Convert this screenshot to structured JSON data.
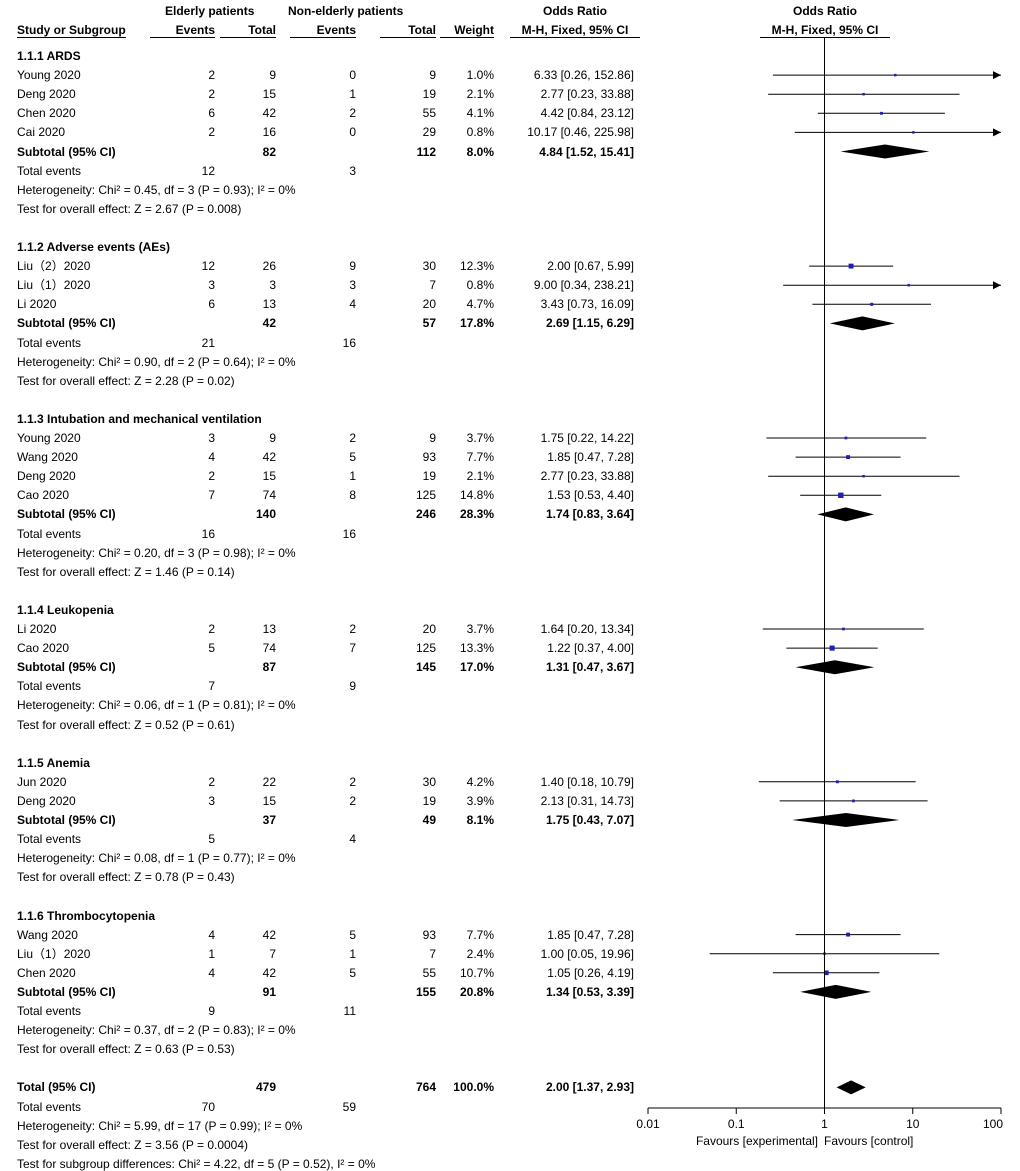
{
  "header": {
    "group1": "Elderly patients",
    "group2": "Non-elderly patients",
    "or_left": "Odds Ratio",
    "or_right": "Odds Ratio",
    "col_study": "Study or Subgroup",
    "col_events1": "Events",
    "col_total1": "Total",
    "col_events2": "Events",
    "col_total2": "Total",
    "col_weight": "Weight",
    "col_method_left": "M-H, Fixed, 95% CI",
    "col_method_right": "M-H, Fixed, 95% CI"
  },
  "chart_data": {
    "type": "forest",
    "xscale": "log",
    "xlim": [
      0.01,
      100
    ],
    "xticks": [
      "0.01",
      "0.1",
      "1",
      "10",
      "100"
    ],
    "favours_left": "Favours [experimental]",
    "favours_right": "Favours [control]",
    "subgroups": [
      {
        "title": "1.1.1 ARDS",
        "studies": [
          {
            "name": "Young 2020",
            "e1": "2",
            "t1": "9",
            "e2": "0",
            "t2": "9",
            "weight": "1.0%",
            "ci_text": "6.33 [0.26, 152.86]",
            "or": 6.33,
            "lo": 0.26,
            "hi": 152.86,
            "w": 1.0
          },
          {
            "name": "Deng 2020",
            "e1": "2",
            "t1": "15",
            "e2": "1",
            "t2": "19",
            "weight": "2.1%",
            "ci_text": "2.77 [0.23, 33.88]",
            "or": 2.77,
            "lo": 0.23,
            "hi": 33.88,
            "w": 2.1
          },
          {
            "name": "Chen 2020",
            "e1": "6",
            "t1": "42",
            "e2": "2",
            "t2": "55",
            "weight": "4.1%",
            "ci_text": "4.42 [0.84, 23.12]",
            "or": 4.42,
            "lo": 0.84,
            "hi": 23.12,
            "w": 4.1
          },
          {
            "name": "Cai 2020",
            "e1": "2",
            "t1": "16",
            "e2": "0",
            "t2": "29",
            "weight": "0.8%",
            "ci_text": "10.17 [0.46, 225.98]",
            "or": 10.17,
            "lo": 0.46,
            "hi": 225.98,
            "w": 0.8
          }
        ],
        "subtotal": {
          "label": "Subtotal (95% CI)",
          "t1": "82",
          "t2": "112",
          "weight": "8.0%",
          "ci_text": "4.84 [1.52, 15.41]",
          "or": 4.84,
          "lo": 1.52,
          "hi": 15.41
        },
        "total_events": {
          "label": "Total events",
          "e1": "12",
          "e2": "3"
        },
        "heterogeneity": "Heterogeneity: Chi² = 0.45, df = 3 (P = 0.93); I² = 0%",
        "overall": "Test for overall effect: Z = 2.67 (P = 0.008)"
      },
      {
        "title": "1.1.2 Adverse events (AEs)",
        "studies": [
          {
            "name": "Liu（2）2020",
            "e1": "12",
            "t1": "26",
            "e2": "9",
            "t2": "30",
            "weight": "12.3%",
            "ci_text": "2.00 [0.67, 5.99]",
            "or": 2.0,
            "lo": 0.67,
            "hi": 5.99,
            "w": 12.3
          },
          {
            "name": "Liu（1）2020",
            "e1": "3",
            "t1": "3",
            "e2": "3",
            "t2": "7",
            "weight": "0.8%",
            "ci_text": "9.00 [0.34, 238.21]",
            "or": 9.0,
            "lo": 0.34,
            "hi": 238.21,
            "w": 0.8
          },
          {
            "name": "Li 2020",
            "e1": "6",
            "t1": "13",
            "e2": "4",
            "t2": "20",
            "weight": "4.7%",
            "ci_text": "3.43 [0.73, 16.09]",
            "or": 3.43,
            "lo": 0.73,
            "hi": 16.09,
            "w": 4.7
          }
        ],
        "subtotal": {
          "label": "Subtotal (95% CI)",
          "t1": "42",
          "t2": "57",
          "weight": "17.8%",
          "ci_text": "2.69 [1.15, 6.29]",
          "or": 2.69,
          "lo": 1.15,
          "hi": 6.29
        },
        "total_events": {
          "label": "Total events",
          "e1": "21",
          "e2": "16"
        },
        "heterogeneity": "Heterogeneity: Chi² = 0.90, df = 2 (P = 0.64); I² = 0%",
        "overall": "Test for overall effect: Z = 2.28 (P = 0.02)"
      },
      {
        "title": "1.1.3 Intubation and mechanical ventilation",
        "studies": [
          {
            "name": "Young 2020",
            "e1": "3",
            "t1": "9",
            "e2": "2",
            "t2": "9",
            "weight": "3.7%",
            "ci_text": "1.75 [0.22, 14.22]",
            "or": 1.75,
            "lo": 0.22,
            "hi": 14.22,
            "w": 3.7
          },
          {
            "name": "Wang 2020",
            "e1": "4",
            "t1": "42",
            "e2": "5",
            "t2": "93",
            "weight": "7.7%",
            "ci_text": "1.85 [0.47, 7.28]",
            "or": 1.85,
            "lo": 0.47,
            "hi": 7.28,
            "w": 7.7
          },
          {
            "name": "Deng 2020",
            "e1": "2",
            "t1": "15",
            "e2": "1",
            "t2": "19",
            "weight": "2.1%",
            "ci_text": "2.77 [0.23, 33.88]",
            "or": 2.77,
            "lo": 0.23,
            "hi": 33.88,
            "w": 2.1
          },
          {
            "name": "Cao 2020",
            "e1": "7",
            "t1": "74",
            "e2": "8",
            "t2": "125",
            "weight": "14.8%",
            "ci_text": "1.53 [0.53, 4.40]",
            "or": 1.53,
            "lo": 0.53,
            "hi": 4.4,
            "w": 14.8
          }
        ],
        "subtotal": {
          "label": "Subtotal (95% CI)",
          "t1": "140",
          "t2": "246",
          "weight": "28.3%",
          "ci_text": "1.74 [0.83, 3.64]",
          "or": 1.74,
          "lo": 0.83,
          "hi": 3.64
        },
        "total_events": {
          "label": "Total events",
          "e1": "16",
          "e2": "16"
        },
        "heterogeneity": "Heterogeneity: Chi² = 0.20, df = 3 (P = 0.98); I² = 0%",
        "overall": "Test for overall effect: Z = 1.46 (P = 0.14)"
      },
      {
        "title": "1.1.4 Leukopenia",
        "studies": [
          {
            "name": "Li 2020",
            "e1": "2",
            "t1": "13",
            "e2": "2",
            "t2": "20",
            "weight": "3.7%",
            "ci_text": "1.64 [0.20, 13.34]",
            "or": 1.64,
            "lo": 0.2,
            "hi": 13.34,
            "w": 3.7
          },
          {
            "name": "Cao 2020",
            "e1": "5",
            "t1": "74",
            "e2": "7",
            "t2": "125",
            "weight": "13.3%",
            "ci_text": "1.22 [0.37, 4.00]",
            "or": 1.22,
            "lo": 0.37,
            "hi": 4.0,
            "w": 13.3
          }
        ],
        "subtotal": {
          "label": "Subtotal (95% CI)",
          "t1": "87",
          "t2": "145",
          "weight": "17.0%",
          "ci_text": "1.31 [0.47, 3.67]",
          "or": 1.31,
          "lo": 0.47,
          "hi": 3.67
        },
        "total_events": {
          "label": "Total events",
          "e1": "7",
          "e2": "9"
        },
        "heterogeneity": "Heterogeneity: Chi² = 0.06, df = 1 (P = 0.81); I² = 0%",
        "overall": "Test for overall effect: Z = 0.52 (P = 0.61)"
      },
      {
        "title": "1.1.5 Anemia",
        "studies": [
          {
            "name": "Jun 2020",
            "e1": "2",
            "t1": "22",
            "e2": "2",
            "t2": "30",
            "weight": "4.2%",
            "ci_text": "1.40 [0.18, 10.79]",
            "or": 1.4,
            "lo": 0.18,
            "hi": 10.79,
            "w": 4.2
          },
          {
            "name": "Deng 2020",
            "e1": "3",
            "t1": "15",
            "e2": "2",
            "t2": "19",
            "weight": "3.9%",
            "ci_text": "2.13 [0.31, 14.73]",
            "or": 2.13,
            "lo": 0.31,
            "hi": 14.73,
            "w": 3.9
          }
        ],
        "subtotal": {
          "label": "Subtotal (95% CI)",
          "t1": "37",
          "t2": "49",
          "weight": "8.1%",
          "ci_text": "1.75 [0.43, 7.07]",
          "or": 1.75,
          "lo": 0.43,
          "hi": 7.07
        },
        "total_events": {
          "label": "Total events",
          "e1": "5",
          "e2": "4"
        },
        "heterogeneity": "Heterogeneity: Chi² = 0.08, df = 1 (P = 0.77); I² = 0%",
        "overall": "Test for overall effect: Z = 0.78 (P = 0.43)"
      },
      {
        "title": "1.1.6 Thrombocytopenia",
        "studies": [
          {
            "name": "Wang 2020",
            "e1": "4",
            "t1": "42",
            "e2": "5",
            "t2": "93",
            "weight": "7.7%",
            "ci_text": "1.85 [0.47, 7.28]",
            "or": 1.85,
            "lo": 0.47,
            "hi": 7.28,
            "w": 7.7
          },
          {
            "name": "Liu（1）2020",
            "e1": "1",
            "t1": "7",
            "e2": "1",
            "t2": "7",
            "weight": "2.4%",
            "ci_text": "1.00 [0.05, 19.96]",
            "or": 1.0,
            "lo": 0.05,
            "hi": 19.96,
            "w": 2.4
          },
          {
            "name": "Chen 2020",
            "e1": "4",
            "t1": "42",
            "e2": "5",
            "t2": "55",
            "weight": "10.7%",
            "ci_text": "1.05 [0.26, 4.19]",
            "or": 1.05,
            "lo": 0.26,
            "hi": 4.19,
            "w": 10.7
          }
        ],
        "subtotal": {
          "label": "Subtotal (95% CI)",
          "t1": "91",
          "t2": "155",
          "weight": "20.8%",
          "ci_text": "1.34 [0.53, 3.39]",
          "or": 1.34,
          "lo": 0.53,
          "hi": 3.39
        },
        "total_events": {
          "label": "Total events",
          "e1": "9",
          "e2": "11"
        },
        "heterogeneity": "Heterogeneity: Chi² = 0.37, df = 2 (P = 0.83); I² = 0%",
        "overall": "Test for overall effect: Z = 0.63 (P = 0.53)"
      }
    ],
    "total": {
      "label": "Total (95% CI)",
      "t1": "479",
      "t2": "764",
      "weight": "100.0%",
      "ci_text": "2.00 [1.37, 2.93]",
      "or": 2.0,
      "lo": 1.37,
      "hi": 2.93,
      "events_label": "Total events",
      "e1": "70",
      "e2": "59",
      "heterogeneity": "Heterogeneity: Chi² = 5.99, df = 17 (P = 0.99); I² = 0%",
      "overall": "Test for overall effect: Z = 3.56 (P = 0.0004)",
      "subgroup_diff": "Test for subgroup differences: Chi² = 4.22, df = 5 (P = 0.52), I² = 0%"
    }
  }
}
